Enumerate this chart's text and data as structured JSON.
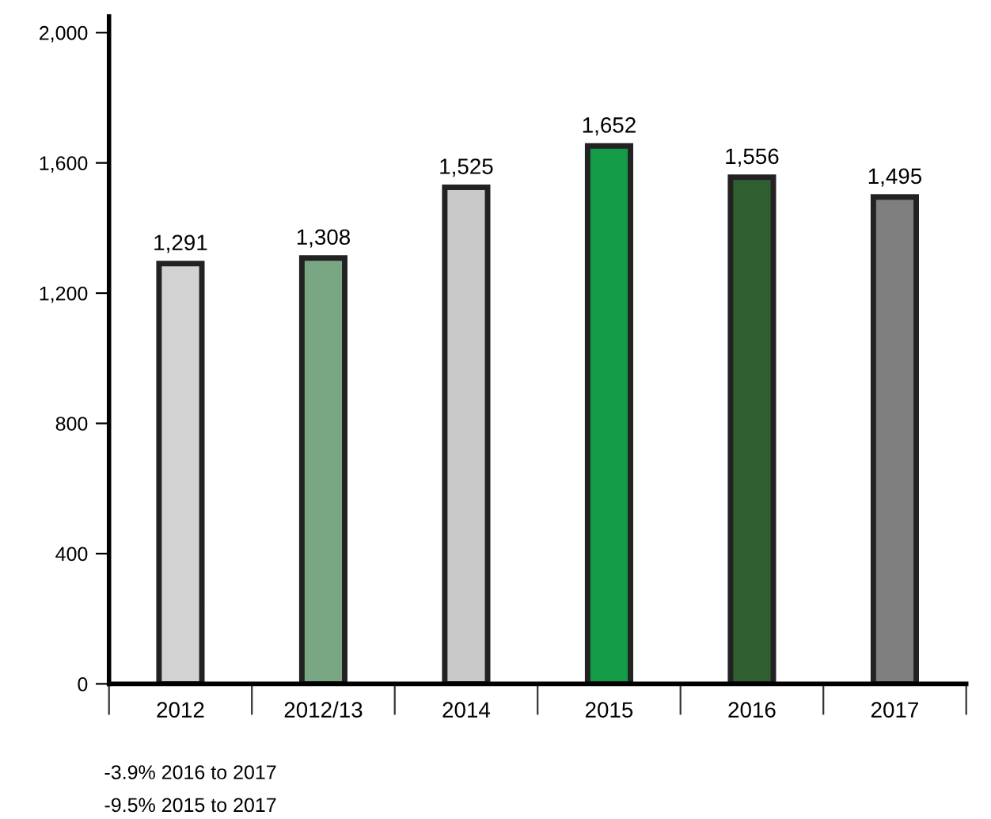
{
  "chart_data": {
    "type": "bar",
    "categories": [
      "2012",
      "2012/13",
      "2014",
      "2015",
      "2016",
      "2017"
    ],
    "values": [
      1291,
      1308,
      1525,
      1652,
      1556,
      1495
    ],
    "value_labels": [
      "1,291",
      "1,308",
      "1,525",
      "1,652",
      "1,556",
      "1,495"
    ],
    "colors": [
      "#d2d2d2",
      "#7aa783",
      "#c9c9c9",
      "#139b48",
      "#2f5f30",
      "#7f7f7f"
    ],
    "ylim": [
      0,
      2050
    ],
    "yticks": [
      0,
      400,
      800,
      {
        "value": 1200,
        "label": "1,200"
      },
      {
        "value": 1600,
        "label": "1,600"
      },
      {
        "value": 2000,
        "label": "2,000"
      }
    ],
    "grid": false,
    "annotations": [
      "-3.9% 2016 to 2017",
      "-9.5% 2015 to 2017"
    ]
  }
}
